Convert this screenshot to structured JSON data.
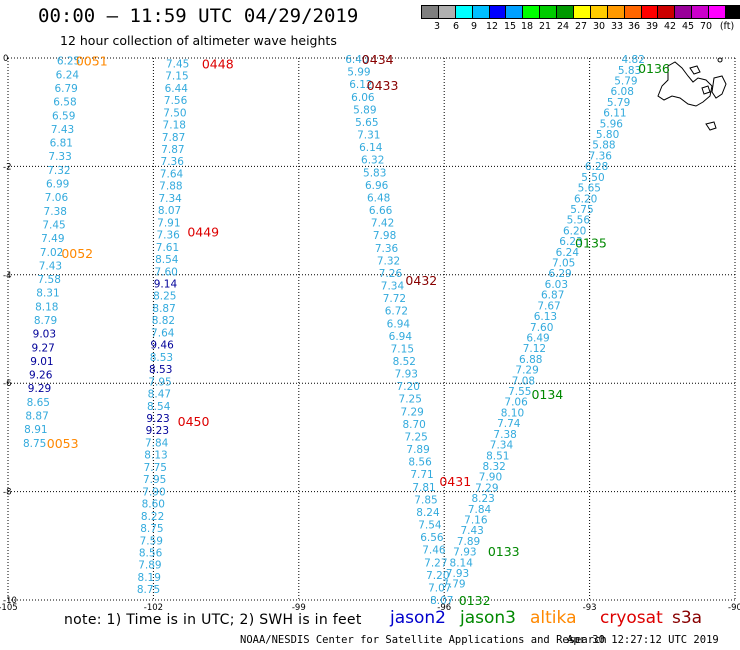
{
  "header": {
    "title": "00:00 – 11:59 UTC 04/29/2019",
    "subtitle": "12 hour collection of altimeter wave heights"
  },
  "colorbar": {
    "colors": [
      "#7f7f7f",
      "#b0b0b0",
      "#00ffff",
      "#00bfff",
      "#0000ff",
      "#00a0ff",
      "#00ff00",
      "#00cc00",
      "#009900",
      "#ffff00",
      "#ffcc00",
      "#ff9900",
      "#ff6600",
      "#ff0000",
      "#cc0000",
      "#990099",
      "#cc00cc",
      "#ff00ff",
      "#000000"
    ],
    "labels": [
      "3",
      "6",
      "9",
      "12",
      "15",
      "18",
      "21",
      "24",
      "27",
      "30",
      "33",
      "36",
      "39",
      "42",
      "45",
      "70"
    ],
    "unit": "(ft)"
  },
  "axes": {
    "x_ticks": [
      "-105",
      "-102",
      "-99",
      "-96",
      "-93",
      "-90"
    ],
    "y_ticks": [
      "0",
      "-2",
      "-4",
      "-6",
      "-8",
      "-10"
    ]
  },
  "note": "note: 1) Time is in UTC; 2) SWH is in feet",
  "legend": [
    {
      "name": "jason2",
      "color": "#0000cc"
    },
    {
      "name": "jason3",
      "color": "#008800"
    },
    {
      "name": "altika",
      "color": "#ff8800"
    },
    {
      "name": "cryosat",
      "color": "#dd0000"
    },
    {
      "name": "s3a",
      "color": "#880000"
    }
  ],
  "footer": {
    "credit": "NOAA/NESDIS Center for Satellite Applications and Research",
    "timestamp": "Apr 30 12:27:12 UTC 2019"
  },
  "tracks": [
    {
      "sat": "altika",
      "time": "0051",
      "lon": -103.6,
      "lat": -0.05,
      "color": "#ff8800"
    },
    {
      "sat": "altika",
      "time": "0052",
      "lon": -103.9,
      "lat": -3.6,
      "color": "#ff8800"
    },
    {
      "sat": "altika",
      "time": "0053",
      "lon": -104.2,
      "lat": -7.1,
      "color": "#ff8800"
    },
    {
      "sat": "cryosat",
      "time": "0448",
      "lon": -101.0,
      "lat": -0.1,
      "color": "#dd0000"
    },
    {
      "sat": "cryosat",
      "time": "0449",
      "lon": -101.3,
      "lat": -3.2,
      "color": "#dd0000"
    },
    {
      "sat": "cryosat",
      "time": "0450",
      "lon": -101.5,
      "lat": -6.7,
      "color": "#dd0000"
    },
    {
      "sat": "cryosat",
      "time": "0431",
      "lon": -96.1,
      "lat": -7.8,
      "color": "#dd0000"
    },
    {
      "sat": "s3a",
      "time": "0434",
      "lon": -97.7,
      "lat": -0.02,
      "color": "#880000"
    },
    {
      "sat": "s3a",
      "time": "0433",
      "lon": -97.6,
      "lat": -0.5,
      "color": "#880000"
    },
    {
      "sat": "s3a",
      "time": "0432",
      "lon": -96.8,
      "lat": -4.1,
      "color": "#880000"
    },
    {
      "sat": "jason3",
      "time": "0136",
      "lon": -92.0,
      "lat": -0.18,
      "color": "#008800"
    },
    {
      "sat": "jason3",
      "time": "0135",
      "lon": -93.3,
      "lat": -3.4,
      "color": "#008800"
    },
    {
      "sat": "jason3",
      "time": "0134",
      "lon": -94.2,
      "lat": -6.2,
      "color": "#008800"
    },
    {
      "sat": "jason3",
      "time": "0133",
      "lon": -95.1,
      "lat": -9.1,
      "color": "#008800"
    },
    {
      "sat": "jason3",
      "time": "0132",
      "lon": -95.7,
      "lat": -10.0,
      "color": "#008800"
    }
  ],
  "swh_tracks": [
    {
      "name": "track-a-altika",
      "lon_start": -103.75,
      "lon_end": -104.45,
      "lat_start": -0.05,
      "lat_end": -7.1,
      "values": [
        "6.25",
        "6.24",
        "6.79",
        "6.58",
        "6.59",
        "7.43",
        "6.81",
        "7.33",
        "7.32",
        "6.99",
        "7.06",
        "7.38",
        "7.45",
        "7.49",
        "7.02",
        "7.43",
        "7.58",
        "8.31",
        "8.18",
        "8.79",
        "9.03",
        "9.27",
        "9.01",
        "9.26",
        "9.29",
        "8.65",
        "8.87",
        "8.91",
        "8.75"
      ],
      "colors": [
        "#33aadd",
        "#33aadd",
        "#33aadd",
        "#33aadd",
        "#33aadd",
        "#33aadd",
        "#33aadd",
        "#33aadd",
        "#33aadd",
        "#33aadd",
        "#33aadd",
        "#33aadd",
        "#33aadd",
        "#33aadd",
        "#33aadd",
        "#33aadd",
        "#33aadd",
        "#33aadd",
        "#33aadd",
        "#33aadd",
        "#000099",
        "#000099",
        "#000099",
        "#000099",
        "#000099",
        "#33aadd",
        "#33aadd",
        "#33aadd",
        "#33aadd"
      ]
    },
    {
      "name": "track-b-cryosat",
      "lon_start": -101.5,
      "lon_end": -102.1,
      "lat_start": -0.1,
      "lat_end": -9.8,
      "values": [
        "7.45",
        "7.15",
        "6.44",
        "7.56",
        "7.50",
        "7.18",
        "7.87",
        "7.87",
        "7.36",
        "7.64",
        "7.88",
        "7.34",
        "8.07",
        "7.91",
        "7.36",
        "7.61",
        "8.54",
        "7.60",
        "9.14",
        "8.25",
        "8.87",
        "8.82",
        "7.64",
        "9.46",
        "8.53",
        "8.53",
        "7.95",
        "8.47",
        "8.54",
        "9.23",
        "9.23",
        "7.84",
        "8.13",
        "7.75",
        "7.95",
        "7.90",
        "8.60",
        "8.22",
        "8.75",
        "7.59",
        "8.56",
        "7.89",
        "8.19",
        "8.75"
      ],
      "colors": [
        "#33aadd",
        "#33aadd",
        "#33aadd",
        "#33aadd",
        "#33aadd",
        "#33aadd",
        "#33aadd",
        "#33aadd",
        "#33aadd",
        "#33aadd",
        "#33aadd",
        "#33aadd",
        "#33aadd",
        "#33aadd",
        "#33aadd",
        "#33aadd",
        "#33aadd",
        "#33aadd",
        "#000099",
        "#33aadd",
        "#33aadd",
        "#33aadd",
        "#33aadd",
        "#000099",
        "#33aadd",
        "#000099",
        "#33aadd",
        "#33aadd",
        "#33aadd",
        "#000099",
        "#000099",
        "#33aadd",
        "#33aadd",
        "#33aadd",
        "#33aadd",
        "#33aadd",
        "#33aadd",
        "#33aadd",
        "#33aadd",
        "#33aadd",
        "#33aadd",
        "#33aadd",
        "#33aadd",
        "#33aadd"
      ]
    },
    {
      "name": "track-c-s3a",
      "lon_start": -97.8,
      "lon_end": -96.05,
      "lat_start": -0.02,
      "lat_end": -10.0,
      "values": [
        "6.40",
        "5.99",
        "6.12",
        "6.06",
        "5.89",
        "5.65",
        "7.31",
        "6.14",
        "6.32",
        "5.83",
        "6.96",
        "6.48",
        "6.66",
        "7.42",
        "7.98",
        "7.36",
        "7.32",
        "7.26",
        "7.34",
        "7.72",
        "6.72",
        "6.94",
        "6.94",
        "7.15",
        "8.52",
        "7.93",
        "7.20",
        "7.25",
        "7.29",
        "8.70",
        "7.25",
        "7.89",
        "8.56",
        "7.71",
        "7.81",
        "7.85",
        "8.24",
        "7.54",
        "6.56",
        "7.46",
        "7.27",
        "7.20",
        "7.07",
        "8.07"
      ],
      "colors": [
        "#33aadd",
        "#33aadd",
        "#33aadd",
        "#33aadd",
        "#33aadd",
        "#33aadd",
        "#33aadd",
        "#33aadd",
        "#33aadd",
        "#33aadd",
        "#33aadd",
        "#33aadd",
        "#33aadd",
        "#33aadd",
        "#33aadd",
        "#33aadd",
        "#33aadd",
        "#33aadd",
        "#33aadd",
        "#33aadd",
        "#33aadd",
        "#33aadd",
        "#33aadd",
        "#33aadd",
        "#33aadd",
        "#33aadd",
        "#33aadd",
        "#33aadd",
        "#33aadd",
        "#33aadd",
        "#33aadd",
        "#33aadd",
        "#33aadd",
        "#33aadd",
        "#33aadd",
        "#33aadd",
        "#33aadd",
        "#33aadd",
        "#33aadd",
        "#33aadd",
        "#33aadd",
        "#33aadd",
        "#33aadd",
        "#33aadd"
      ]
    },
    {
      "name": "track-d-jason3",
      "lon_start": -92.1,
      "lon_end": -95.8,
      "lat_start": -0.02,
      "lat_end": -9.7,
      "values": [
        "4.82",
        "5.83",
        "5.79",
        "6.08",
        "5.79",
        "6.11",
        "5.96",
        "5.80",
        "5.88",
        "7.36",
        "6.28",
        "5.50",
        "5.65",
        "6.20",
        "5.75",
        "5.56",
        "6.20",
        "6.23",
        "6.24",
        "7.05",
        "6.29",
        "6.03",
        "6.87",
        "7.67",
        "6.13",
        "7.60",
        "6.49",
        "7.12",
        "6.88",
        "7.29",
        "7.08",
        "7.55",
        "7.06",
        "8.10",
        "7.74",
        "7.38",
        "7.34",
        "8.51",
        "8.32",
        "7.90",
        "7.29",
        "8.23",
        "7.84",
        "7.16",
        "7.43",
        "7.89",
        "7.93",
        "8.14",
        "7.93",
        "7.79"
      ],
      "colors": [
        "#33aadd",
        "#33aadd",
        "#33aadd",
        "#33aadd",
        "#33aadd",
        "#33aadd",
        "#33aadd",
        "#33aadd",
        "#33aadd",
        "#33aadd",
        "#33aadd",
        "#33aadd",
        "#33aadd",
        "#33aadd",
        "#33aadd",
        "#33aadd",
        "#33aadd",
        "#33aadd",
        "#33aadd",
        "#33aadd",
        "#33aadd",
        "#33aadd",
        "#33aadd",
        "#33aadd",
        "#33aadd",
        "#33aadd",
        "#33aadd",
        "#33aadd",
        "#33aadd",
        "#33aadd",
        "#33aadd",
        "#33aadd",
        "#33aadd",
        "#33aadd",
        "#33aadd",
        "#33aadd",
        "#33aadd",
        "#33aadd",
        "#33aadd",
        "#33aadd",
        "#33aadd",
        "#33aadd",
        "#33aadd",
        "#33aadd",
        "#33aadd",
        "#33aadd",
        "#33aadd",
        "#33aadd",
        "#33aadd",
        "#33aadd"
      ]
    }
  ]
}
